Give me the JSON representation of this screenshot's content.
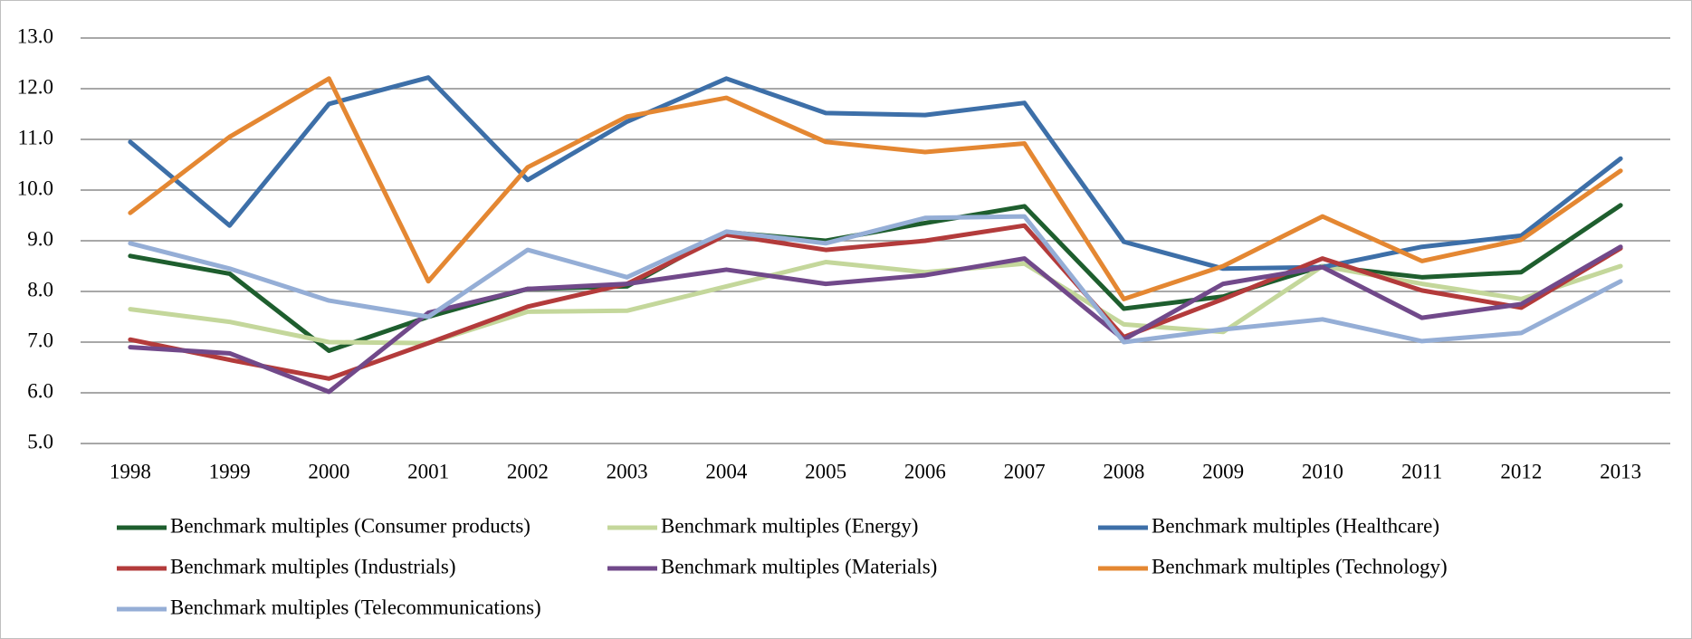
{
  "chart_data": {
    "type": "line",
    "categories": [
      "1998",
      "1999",
      "2000",
      "2001",
      "2002",
      "2003",
      "2004",
      "2005",
      "2006",
      "2007",
      "2008",
      "2009",
      "2010",
      "2011",
      "2012",
      "2013"
    ],
    "ylim": [
      5,
      13
    ],
    "yticks": [
      {
        "value": 5,
        "label": "5.0"
      },
      {
        "value": 6,
        "label": "6.0"
      },
      {
        "value": 7,
        "label": "7.0"
      },
      {
        "value": 8,
        "label": "8.0"
      },
      {
        "value": 9,
        "label": "9.0"
      },
      {
        "value": 10,
        "label": "10.0"
      },
      {
        "value": 11,
        "label": "11.0"
      },
      {
        "value": 12,
        "label": "12.0"
      },
      {
        "value": 13,
        "label": "13.0"
      }
    ],
    "grid": true,
    "legend": "bottom",
    "series": [
      {
        "name": "Benchmark multiples (Consumer products)",
        "color": "#1e5e2e",
        "values": [
          8.7,
          8.35,
          6.83,
          7.5,
          8.05,
          8.1,
          9.17,
          9.0,
          9.35,
          9.68,
          7.66,
          7.9,
          8.5,
          8.28,
          8.38,
          9.7
        ]
      },
      {
        "name": "Benchmark multiples (Energy)",
        "color": "#c4d79b",
        "values": [
          7.65,
          7.4,
          7.0,
          6.98,
          7.6,
          7.62,
          8.1,
          8.58,
          8.38,
          8.55,
          7.35,
          7.2,
          8.5,
          8.15,
          7.85,
          8.5
        ]
      },
      {
        "name": "Benchmark multiples (Healthcare)",
        "color": "#3d6fa8",
        "values": [
          10.95,
          9.3,
          11.7,
          12.22,
          10.2,
          11.35,
          12.2,
          11.52,
          11.48,
          11.72,
          8.98,
          8.45,
          8.48,
          8.88,
          9.1,
          10.62
        ]
      },
      {
        "name": "Benchmark multiples (Industrials)",
        "color": "#b33b3b",
        "values": [
          7.05,
          6.65,
          6.28,
          6.98,
          7.7,
          8.15,
          9.12,
          8.82,
          9.0,
          9.3,
          7.1,
          7.85,
          8.65,
          8.02,
          7.68,
          8.85
        ]
      },
      {
        "name": "Benchmark multiples (Materials)",
        "color": "#71498a",
        "values": [
          6.9,
          6.78,
          6.02,
          7.58,
          8.05,
          8.15,
          8.43,
          8.15,
          8.32,
          8.65,
          7.05,
          8.15,
          8.48,
          7.48,
          7.75,
          8.88
        ]
      },
      {
        "name": "Benchmark multiples (Technology)",
        "color": "#e48732",
        "values": [
          9.55,
          11.05,
          12.2,
          8.2,
          10.45,
          11.45,
          11.82,
          10.95,
          10.75,
          10.92,
          7.85,
          8.5,
          9.48,
          8.6,
          9.02,
          10.38
        ]
      },
      {
        "name": "Benchmark multiples (Telecommunications)",
        "color": "#95aed6",
        "values": [
          8.95,
          8.45,
          7.82,
          7.5,
          8.82,
          8.28,
          9.18,
          8.95,
          9.45,
          9.48,
          7.0,
          7.25,
          7.45,
          7.02,
          7.18,
          8.2
        ]
      }
    ]
  }
}
